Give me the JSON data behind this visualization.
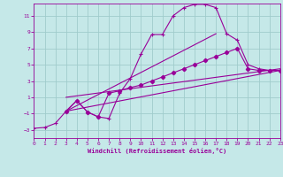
{
  "xlabel": "Windchill (Refroidissement éolien,°C)",
  "bg_color": "#c5e8e8",
  "grid_color": "#a0cccc",
  "line_color": "#990099",
  "x_min": 0,
  "x_max": 23,
  "y_min": -4,
  "y_max": 12.5,
  "y_ticks": [
    -3,
    -1,
    1,
    3,
    5,
    7,
    9,
    11
  ],
  "x_ticks": [
    0,
    1,
    2,
    3,
    4,
    5,
    6,
    7,
    8,
    9,
    10,
    11,
    12,
    13,
    14,
    15,
    16,
    17,
    18,
    19,
    20,
    21,
    22,
    23
  ],
  "line1_x": [
    0,
    1,
    2,
    3,
    4,
    5,
    6,
    7,
    8,
    9,
    10,
    11,
    12,
    13,
    14,
    15,
    16,
    17,
    18,
    19,
    20,
    21,
    22,
    23
  ],
  "line1_y": [
    -2.8,
    -2.7,
    -2.2,
    -0.7,
    0.6,
    -0.8,
    -1.4,
    -1.6,
    1.5,
    3.3,
    6.3,
    8.7,
    8.7,
    11.0,
    12.0,
    12.4,
    12.4,
    12.0,
    8.8,
    8.0,
    5.0,
    4.5,
    4.3,
    4.3
  ],
  "line2_x": [
    3,
    4,
    5,
    6,
    7,
    8,
    9,
    10,
    11,
    12,
    13,
    14,
    15,
    16,
    17,
    18,
    19,
    20,
    21,
    22,
    23
  ],
  "line2_y": [
    -0.7,
    0.6,
    -0.8,
    -1.4,
    1.5,
    1.8,
    2.2,
    2.5,
    3.0,
    3.5,
    4.0,
    4.5,
    5.0,
    5.5,
    6.0,
    6.5,
    7.0,
    4.5,
    4.3,
    4.3,
    4.3
  ],
  "line3_x": [
    3,
    23
  ],
  "line3_y": [
    -0.7,
    4.3
  ],
  "line4_x": [
    3,
    23
  ],
  "line4_y": [
    1.0,
    4.5
  ],
  "line5_x": [
    3,
    17
  ],
  "line5_y": [
    -0.7,
    8.8
  ]
}
